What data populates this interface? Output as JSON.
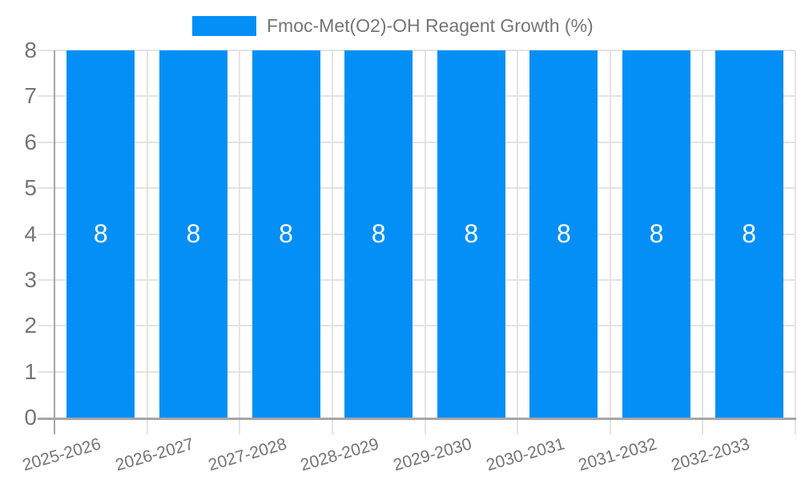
{
  "legend": {
    "label": "Fmoc-Met(O2)-OH Reagent Growth (%)"
  },
  "colors": {
    "bar": "#048FF6",
    "grid": "#e3e3e3",
    "axis": "#a6a6a6",
    "tick_label": "#757575",
    "bar_label": "#ffffff",
    "background": "#ffffff"
  },
  "chart_data": {
    "type": "bar",
    "title": "Fmoc-Met(O2)-OH Reagent Growth (%)",
    "categories": [
      "2025-2026",
      "2026-2027",
      "2027-2028",
      "2028-2029",
      "2029-2030",
      "2030-2031",
      "2031-2032",
      "2032-2033"
    ],
    "series": [
      {
        "name": "Fmoc-Met(O2)-OH Reagent Growth (%)",
        "values": [
          8,
          8,
          8,
          8,
          8,
          8,
          8,
          8
        ]
      }
    ],
    "data_labels": [
      "8",
      "8",
      "8",
      "8",
      "8",
      "8",
      "8",
      "8"
    ],
    "xlabel": "",
    "ylabel": "",
    "ylim": [
      0,
      8
    ],
    "yticks": [
      0,
      1,
      2,
      3,
      4,
      5,
      6,
      7,
      8
    ],
    "grid": true,
    "legend_position": "top-center",
    "x_label_rotation_deg": -16
  }
}
